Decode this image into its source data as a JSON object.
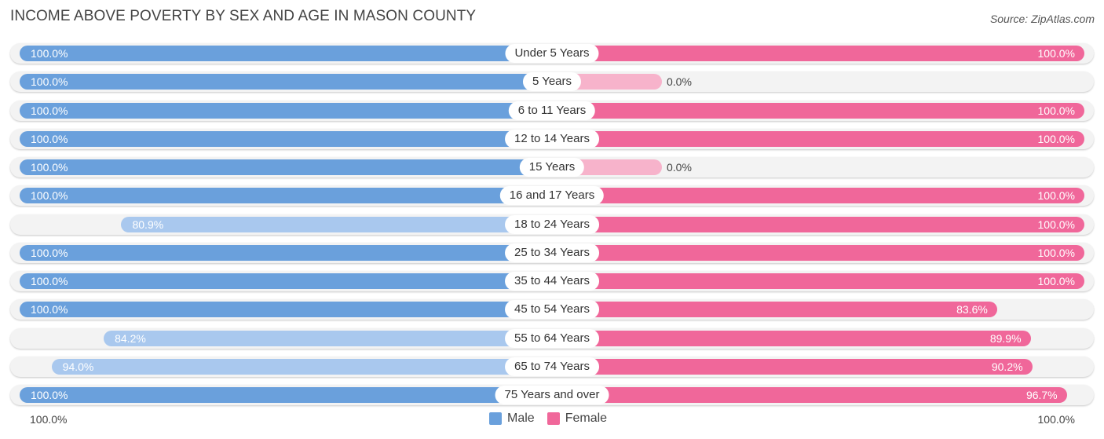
{
  "title": "INCOME ABOVE POVERTY BY SEX AND AGE IN MASON COUNTY",
  "source": "Source: ZipAtlas.com",
  "axis": {
    "left": "100.0%",
    "right": "100.0%"
  },
  "legend": [
    {
      "label": "Male",
      "color": "#6aa0dc"
    },
    {
      "label": "Female",
      "color": "#f0679a"
    }
  ],
  "colors": {
    "male_full": "#6aa0dc",
    "male_light": "#a9c8ee",
    "female_full": "#f0679a",
    "female_light": "#f7b3cb"
  },
  "chart_data": {
    "type": "bar",
    "title": "INCOME ABOVE POVERTY BY SEX AND AGE IN MASON COUNTY",
    "orientation": "horizontal-diverging",
    "categories": [
      "Under 5 Years",
      "5 Years",
      "6 to 11 Years",
      "12 to 14 Years",
      "15 Years",
      "16 and 17 Years",
      "18 to 24 Years",
      "25 to 34 Years",
      "35 to 44 Years",
      "45 to 54 Years",
      "55 to 64 Years",
      "65 to 74 Years",
      "75 Years and over"
    ],
    "series": [
      {
        "name": "Male",
        "values": [
          100.0,
          100.0,
          100.0,
          100.0,
          100.0,
          100.0,
          80.9,
          100.0,
          100.0,
          100.0,
          84.2,
          94.0,
          100.0
        ],
        "labels": [
          "100.0%",
          "100.0%",
          "100.0%",
          "100.0%",
          "100.0%",
          "100.0%",
          "80.9%",
          "100.0%",
          "100.0%",
          "100.0%",
          "84.2%",
          "94.0%",
          "100.0%"
        ]
      },
      {
        "name": "Female",
        "values": [
          100.0,
          0.0,
          100.0,
          100.0,
          0.0,
          100.0,
          100.0,
          100.0,
          100.0,
          83.6,
          89.9,
          90.2,
          96.7
        ],
        "labels": [
          "100.0%",
          "0.0%",
          "100.0%",
          "100.0%",
          "0.0%",
          "100.0%",
          "100.0%",
          "100.0%",
          "100.0%",
          "83.6%",
          "89.9%",
          "90.2%",
          "96.7%"
        ]
      }
    ],
    "xlim": [
      0,
      100
    ],
    "legend_position": "bottom-center"
  }
}
